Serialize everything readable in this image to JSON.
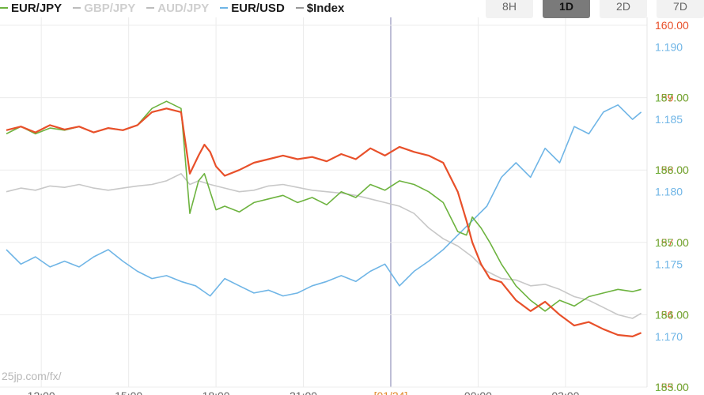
{
  "legend": [
    {
      "label": "EUR/JPY",
      "color": "#6db33f",
      "active": true
    },
    {
      "label": "GBP/JPY",
      "color": "#bdbdbd",
      "active": false
    },
    {
      "label": "AUD/JPY",
      "color": "#bdbdbd",
      "active": false
    },
    {
      "label": "EUR/USD",
      "color": "#6fb5e6",
      "active": true
    },
    {
      "label": "$Index",
      "color": "#999999",
      "active": true
    }
  ],
  "timeframes": [
    {
      "label": "8H",
      "active": false
    },
    {
      "label": "1D",
      "active": true
    },
    {
      "label": "2D",
      "active": false
    },
    {
      "label": "7D",
      "active": false
    }
  ],
  "watermark": "25jp.com/fx/",
  "chart_data": {
    "type": "line",
    "grid": true,
    "day_marker": "[01/24]",
    "x_ticks": [
      "12:00",
      "15:00",
      "18:00",
      "21:00",
      "[01/24]",
      "00:00",
      "03:00"
    ],
    "x_range": [
      0,
      22
    ],
    "series": [
      {
        "name": "$Index",
        "color": "#e8502a",
        "axis": "red",
        "x": [
          0,
          0.5,
          1,
          1.5,
          2,
          2.5,
          3,
          3.5,
          4,
          4.5,
          5,
          5.5,
          6,
          6.3,
          6.6,
          6.8,
          7,
          7.2,
          7.5,
          8,
          8.5,
          9,
          9.5,
          10,
          10.5,
          11,
          11.5,
          12,
          12.5,
          13,
          13.5,
          14,
          14.5,
          15,
          15.5,
          15.8,
          16,
          16.3,
          16.6,
          17,
          17.5,
          18,
          18.5,
          19,
          19.5,
          20,
          20.5,
          21,
          21.5,
          21.8
        ],
        "values": [
          158.55,
          158.6,
          158.52,
          158.62,
          158.56,
          158.6,
          158.52,
          158.58,
          158.55,
          158.62,
          158.8,
          158.85,
          158.8,
          157.95,
          158.2,
          158.35,
          158.25,
          158.05,
          157.92,
          158.0,
          158.1,
          158.15,
          158.2,
          158.15,
          158.18,
          158.12,
          158.22,
          158.15,
          158.3,
          158.2,
          158.32,
          158.25,
          158.2,
          158.1,
          157.7,
          157.3,
          157.0,
          156.7,
          156.5,
          156.45,
          156.2,
          156.05,
          156.18,
          156.0,
          155.85,
          155.9,
          155.8,
          155.72,
          155.7,
          155.75
        ]
      },
      {
        "name": "EUR/JPY",
        "color": "#6db33f",
        "axis": "green",
        "x": [
          0,
          0.5,
          1,
          1.5,
          2,
          2.5,
          3,
          3.5,
          4,
          4.5,
          5,
          5.5,
          6,
          6.3,
          6.6,
          6.8,
          7,
          7.2,
          7.5,
          8,
          8.5,
          9,
          9.5,
          10,
          10.5,
          11,
          11.5,
          12,
          12.5,
          13,
          13.5,
          14,
          14.5,
          15,
          15.5,
          15.8,
          16,
          16.3,
          16.6,
          17,
          17.5,
          18,
          18.5,
          19,
          19.5,
          20,
          20.5,
          21,
          21.5,
          21.8
        ],
        "values": [
          186.5,
          186.6,
          186.5,
          186.58,
          186.55,
          186.6,
          186.52,
          186.58,
          186.55,
          186.62,
          186.85,
          186.95,
          186.85,
          185.4,
          185.85,
          185.95,
          185.7,
          185.45,
          185.5,
          185.42,
          185.55,
          185.6,
          185.65,
          185.55,
          185.62,
          185.52,
          185.7,
          185.62,
          185.8,
          185.72,
          185.85,
          185.8,
          185.7,
          185.55,
          185.15,
          185.1,
          185.35,
          185.2,
          185.0,
          184.7,
          184.4,
          184.2,
          184.05,
          184.2,
          184.12,
          184.25,
          184.3,
          184.35,
          184.32,
          184.35
        ]
      },
      {
        "name": "EUR/USD",
        "color": "#6fb5e6",
        "axis": "blue",
        "x": [
          0,
          0.5,
          1,
          1.5,
          2,
          2.5,
          3,
          3.5,
          4,
          4.5,
          5,
          5.5,
          6,
          6.5,
          7,
          7.5,
          8,
          8.5,
          9,
          9.5,
          10,
          10.5,
          11,
          11.5,
          12,
          12.5,
          13,
          13.5,
          14,
          14.5,
          15,
          15.5,
          16,
          16.5,
          17,
          17.5,
          18,
          18.5,
          19,
          19.5,
          20,
          20.5,
          21,
          21.5,
          21.8
        ],
        "values": [
          1.176,
          1.175,
          1.1755,
          1.1748,
          1.1752,
          1.1748,
          1.1755,
          1.176,
          1.1752,
          1.1745,
          1.174,
          1.1742,
          1.1738,
          1.1735,
          1.1728,
          1.174,
          1.1735,
          1.173,
          1.1732,
          1.1728,
          1.173,
          1.1735,
          1.1738,
          1.1742,
          1.1738,
          1.1745,
          1.175,
          1.1735,
          1.1745,
          1.1752,
          1.176,
          1.177,
          1.178,
          1.179,
          1.181,
          1.182,
          1.181,
          1.183,
          1.182,
          1.1845,
          1.184,
          1.1855,
          1.186,
          1.185,
          1.1855
        ]
      },
      {
        "name": "GBP/JPY",
        "color": "#c8c8c8",
        "axis": "green",
        "x": [
          0,
          0.5,
          1,
          1.5,
          2,
          2.5,
          3,
          3.5,
          4,
          4.5,
          5,
          5.5,
          6,
          6.3,
          6.6,
          7,
          7.5,
          8,
          8.5,
          9,
          9.5,
          10,
          10.5,
          11,
          11.5,
          12,
          12.5,
          13,
          13.5,
          14,
          14.5,
          15,
          15.5,
          16,
          16.5,
          17,
          17.5,
          18,
          18.5,
          19,
          19.5,
          20,
          20.5,
          21,
          21.5,
          21.8
        ],
        "values": [
          185.7,
          185.75,
          185.72,
          185.78,
          185.76,
          185.8,
          185.75,
          185.72,
          185.75,
          185.78,
          185.8,
          185.85,
          185.95,
          185.8,
          185.85,
          185.8,
          185.75,
          185.7,
          185.72,
          185.78,
          185.8,
          185.76,
          185.72,
          185.7,
          185.68,
          185.65,
          185.6,
          185.55,
          185.5,
          185.4,
          185.2,
          185.05,
          184.95,
          184.8,
          184.6,
          184.5,
          184.48,
          184.4,
          184.42,
          184.35,
          184.25,
          184.2,
          184.1,
          184.0,
          183.95,
          184.02
        ]
      }
    ],
    "y_axes": [
      {
        "name": "red",
        "color": "#e8502a",
        "range": [
          155.0,
          160.0
        ],
        "ticks": [
          "160.00",
          "159.00",
          "158.00",
          "157.00",
          "156.00",
          "155.00"
        ]
      },
      {
        "name": "green",
        "color": "#6db33f",
        "range": [
          183.0,
          188.0
        ],
        "ticks": [
          "187.00",
          "186.00",
          "185.00",
          "184.00",
          "183.00"
        ]
      },
      {
        "name": "blue",
        "color": "#6fb5e6",
        "range": [
          1.1665,
          1.1915
        ],
        "ticks": [
          "1.190",
          "1.185",
          "1.180",
          "1.175",
          "1.170"
        ]
      }
    ]
  }
}
